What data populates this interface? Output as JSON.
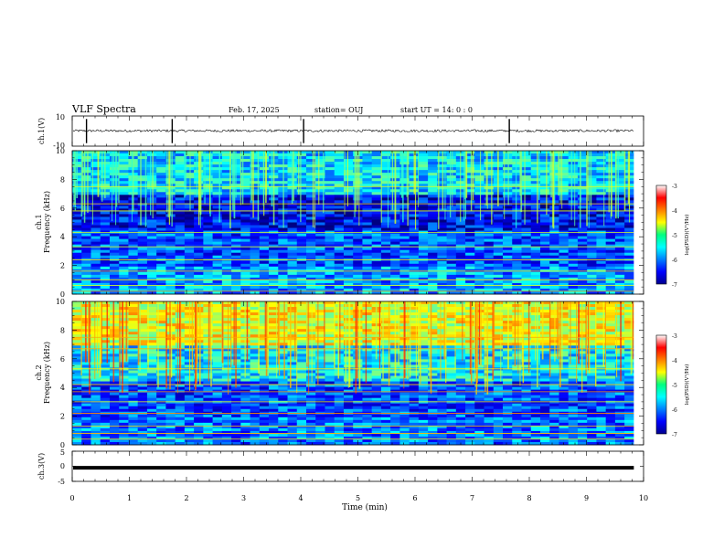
{
  "header": {
    "title": "VLF Spectra",
    "date": "Feb. 17, 2025",
    "station": "station= OUJ",
    "start": "start  UT =   14: 0   : 0"
  },
  "chart_data": [
    {
      "type": "line",
      "ylabel": "ch.1(V)",
      "ylim": [
        -10,
        10
      ],
      "ytick_labels": [
        "10",
        "-10"
      ],
      "x_range_min": [
        0,
        9.83
      ],
      "baseline_V": 0.2,
      "spikes_min": [
        0.25,
        1.75,
        4.05,
        7.65
      ]
    },
    {
      "type": "heatmap",
      "ylabel": "ch.1\nFrequency (kHz)",
      "ylim_kHz": [
        0,
        10
      ],
      "ytick_labels": [
        "0",
        "2",
        "4",
        "6",
        "8",
        "10"
      ],
      "colorbar": {
        "label": "log(PSD)(V²/Hz)",
        "range": [
          -7,
          -3
        ],
        "tick_labels": [
          "-3",
          "-4",
          "-5",
          "-6",
          "-7"
        ]
      }
    },
    {
      "type": "heatmap",
      "ylabel": "ch.2\nFrequency (kHz)",
      "ylim_kHz": [
        0,
        10
      ],
      "ytick_labels": [
        "0",
        "2",
        "4",
        "6",
        "8",
        "10"
      ],
      "colorbar": {
        "label": "log(PSD)(V²/Hz)",
        "range": [
          -7,
          -3
        ],
        "tick_labels": [
          "-3",
          "-4",
          "-5",
          "-6",
          "-7"
        ]
      }
    },
    {
      "type": "line",
      "ylabel": "ch.3(V)",
      "ylim": [
        -5,
        5
      ],
      "ytick_labels": [
        "5",
        "0",
        "-5"
      ],
      "constant_V": -0.5
    }
  ],
  "xaxis": {
    "label": "Time (min)",
    "xlim": [
      0,
      10
    ],
    "tick_labels": [
      "0",
      "1",
      "2",
      "3",
      "4",
      "5",
      "6",
      "7",
      "8",
      "9",
      "10"
    ]
  }
}
